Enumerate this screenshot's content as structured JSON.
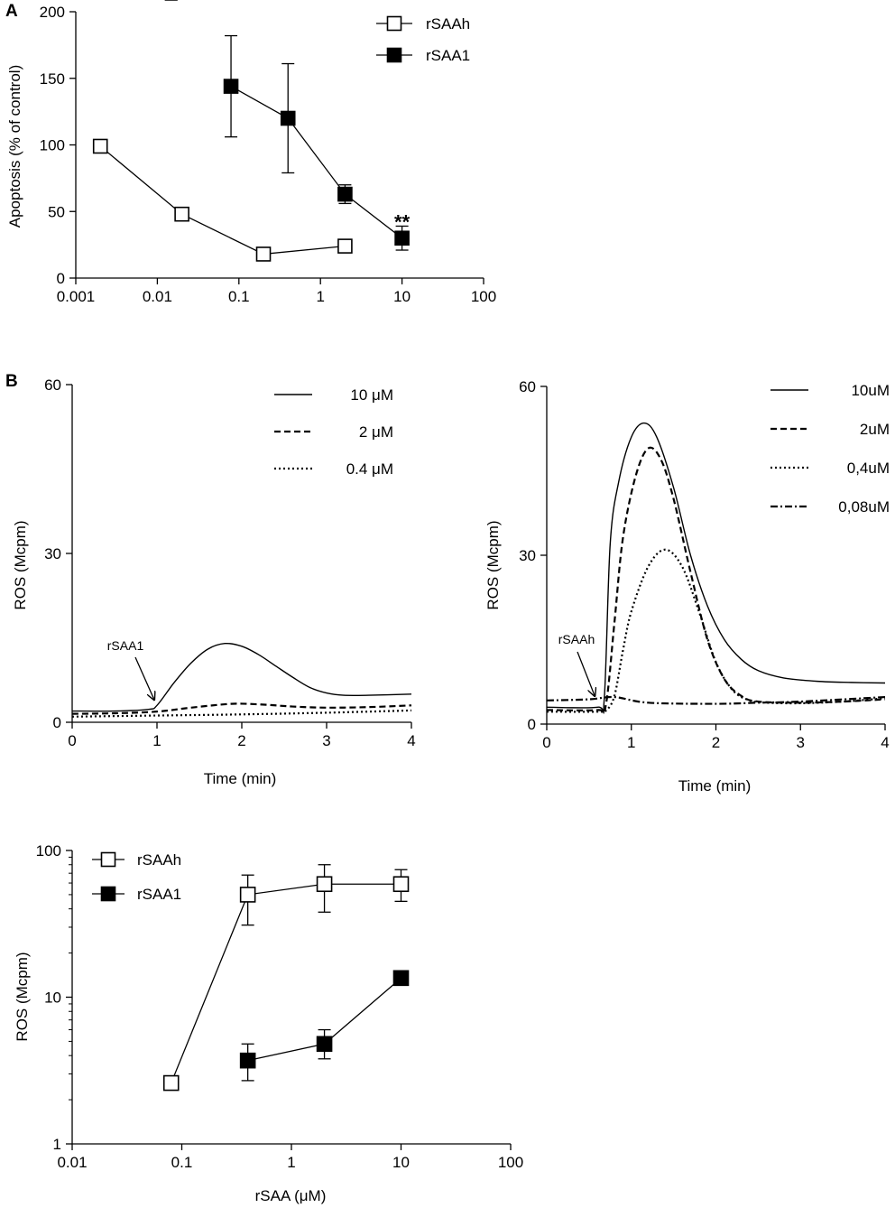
{
  "panel_labels": {
    "a": "A",
    "b": "B"
  },
  "chart_data": [
    {
      "id": "A",
      "type": "scatter",
      "title": "",
      "xlabel": "",
      "ylabel": "Apoptosis (% of control)",
      "xscale": "log",
      "xlim": [
        0.001,
        100
      ],
      "ylim": [
        0,
        200
      ],
      "xticks": [
        0.001,
        0.01,
        0.1,
        1,
        10,
        100
      ],
      "xtick_labels": [
        "0.001",
        "0.01",
        "0.1",
        "1",
        "10",
        "100"
      ],
      "yticks": [
        0,
        50,
        100,
        150,
        200
      ],
      "ytick_labels": [
        "0",
        "50",
        "100",
        "150",
        "200"
      ],
      "legend_position": "top-right",
      "series": [
        {
          "name": "rSAAh",
          "marker": "open-square",
          "x": [
            0.002,
            0.02,
            0.2,
            2
          ],
          "y": [
            99,
            48,
            18,
            24
          ],
          "err": [
            0,
            0,
            0,
            0
          ]
        },
        {
          "name": "rSAA1",
          "marker": "filled-square",
          "x": [
            0.08,
            0.4,
            2,
            10
          ],
          "y": [
            144,
            120,
            63,
            30
          ],
          "err": [
            38,
            41,
            7,
            9
          ]
        }
      ],
      "annotations": [
        {
          "text": "**",
          "x": 10,
          "y": 45
        }
      ]
    },
    {
      "id": "B-left",
      "type": "line",
      "xlabel": "Time (min)",
      "ylabel": "ROS (Mcpm)",
      "xlim": [
        0,
        4
      ],
      "ylim": [
        0,
        60
      ],
      "xticks": [
        0,
        1,
        2,
        3,
        4
      ],
      "xtick_labels": [
        "0",
        "1",
        "2",
        "3",
        "4"
      ],
      "yticks": [
        0,
        30,
        60
      ],
      "ytick_labels": [
        "0",
        "30",
        "60"
      ],
      "legend_position": "top-right",
      "annotation": {
        "text": "rSAA1",
        "x": 1,
        "y": 3.5
      },
      "series": [
        {
          "name": "10 μM",
          "style": "solid",
          "x": [
            0,
            0.5,
            0.9,
            1.0,
            1.2,
            1.4,
            1.6,
            1.8,
            2.0,
            2.2,
            2.4,
            2.6,
            2.8,
            3.0,
            3.2,
            3.5,
            4.0
          ],
          "y": [
            2,
            2,
            2.3,
            3,
            7,
            10.5,
            13,
            14,
            13.5,
            12,
            10,
            8,
            6.2,
            5.2,
            4.8,
            4.8,
            5
          ]
        },
        {
          "name": "2 μM",
          "style": "dashed",
          "x": [
            0,
            0.5,
            1.0,
            1.4,
            1.8,
            2.0,
            2.3,
            2.6,
            3.0,
            3.5,
            4.0
          ],
          "y": [
            1.5,
            1.6,
            1.9,
            2.6,
            3.2,
            3.3,
            3.1,
            2.8,
            2.6,
            2.7,
            3.0
          ]
        },
        {
          "name": "0.4 μM",
          "style": "dotted",
          "x": [
            0,
            1.0,
            2.0,
            3.0,
            4.0
          ],
          "y": [
            1.0,
            1.2,
            1.4,
            1.7,
            2.1
          ]
        }
      ]
    },
    {
      "id": "B-right",
      "type": "line",
      "xlabel": "Time (min)",
      "ylabel": "ROS (Mcpm)",
      "xlim": [
        0,
        4
      ],
      "ylim": [
        0,
        60
      ],
      "xticks": [
        0,
        1,
        2,
        3,
        4
      ],
      "xtick_labels": [
        "0",
        "1",
        "2",
        "3",
        "4"
      ],
      "yticks": [
        0,
        30,
        60
      ],
      "ytick_labels": [
        "0",
        "30",
        "60"
      ],
      "legend_position": "top-right",
      "annotation": {
        "text": "rSAAh",
        "x": 0.6,
        "y": 4.5
      },
      "series": [
        {
          "name": "10uM",
          "style": "solid",
          "x": [
            0,
            0.6,
            0.68,
            0.75,
            0.85,
            1.0,
            1.15,
            1.3,
            1.5,
            1.7,
            1.9,
            2.1,
            2.3,
            2.5,
            2.8,
            3.2,
            3.6,
            4.0
          ],
          "y": [
            3,
            3,
            4.5,
            32,
            43,
            51,
            53.5,
            51,
            42,
            30,
            21,
            15,
            11.5,
            9.5,
            8.2,
            7.6,
            7.4,
            7.3
          ]
        },
        {
          "name": "2uM",
          "style": "dashed",
          "x": [
            0,
            0.6,
            0.7,
            0.8,
            0.9,
            1.05,
            1.2,
            1.35,
            1.5,
            1.7,
            1.9,
            2.1,
            2.3,
            2.5,
            3.0,
            3.5,
            4.0
          ],
          "y": [
            2.5,
            2.5,
            3.5,
            18,
            33,
            44,
            49,
            47,
            40,
            27,
            15,
            8,
            5,
            4,
            3.8,
            4.0,
            4.4
          ]
        },
        {
          "name": "0,4uM",
          "style": "dotted",
          "x": [
            0,
            0.6,
            0.7,
            0.8,
            0.9,
            1.0,
            1.2,
            1.4,
            1.6,
            1.8,
            2.0,
            2.2,
            2.4,
            2.6,
            3.0,
            3.5,
            4.0
          ],
          "y": [
            2.2,
            2.2,
            2.4,
            5,
            13,
            20,
            28,
            31,
            28,
            20,
            11,
            6,
            4.2,
            3.8,
            3.7,
            4.0,
            4.6
          ]
        },
        {
          "name": "0,08uM",
          "style": "dashdot",
          "x": [
            0,
            0.5,
            0.8,
            1.2,
            2.0,
            2.5,
            3.0,
            4.0
          ],
          "y": [
            4.2,
            4.4,
            4.8,
            3.8,
            3.6,
            3.8,
            4.0,
            4.8
          ]
        }
      ]
    },
    {
      "id": "B-bottom",
      "type": "scatter",
      "xlabel": "rSAA (μM)",
      "ylabel": "ROS (Mcpm)",
      "xscale": "log",
      "yscale": "log",
      "xlim": [
        0.01,
        100
      ],
      "ylim": [
        1,
        100
      ],
      "xticks": [
        0.01,
        0.1,
        1,
        10,
        100
      ],
      "xtick_labels": [
        "0.01",
        "0.1",
        "1",
        "10",
        "100"
      ],
      "yticks": [
        1,
        10,
        100
      ],
      "ytick_labels": [
        "1",
        "10",
        "100"
      ],
      "legend_position": "top-left",
      "series": [
        {
          "name": "rSAAh",
          "marker": "open-square",
          "x": [
            0.08,
            0.4,
            2,
            10
          ],
          "y": [
            2.6,
            50,
            59,
            59
          ],
          "err_up": [
            0,
            68,
            80,
            74
          ],
          "err_down": [
            0,
            31,
            38,
            45
          ]
        },
        {
          "name": "rSAA1",
          "marker": "filled-square",
          "x": [
            0.4,
            2,
            10
          ],
          "y": [
            3.7,
            4.8,
            13.5
          ],
          "err_up": [
            4.8,
            6,
            13.5
          ],
          "err_down": [
            2.7,
            3.8,
            13.5
          ]
        }
      ]
    }
  ]
}
